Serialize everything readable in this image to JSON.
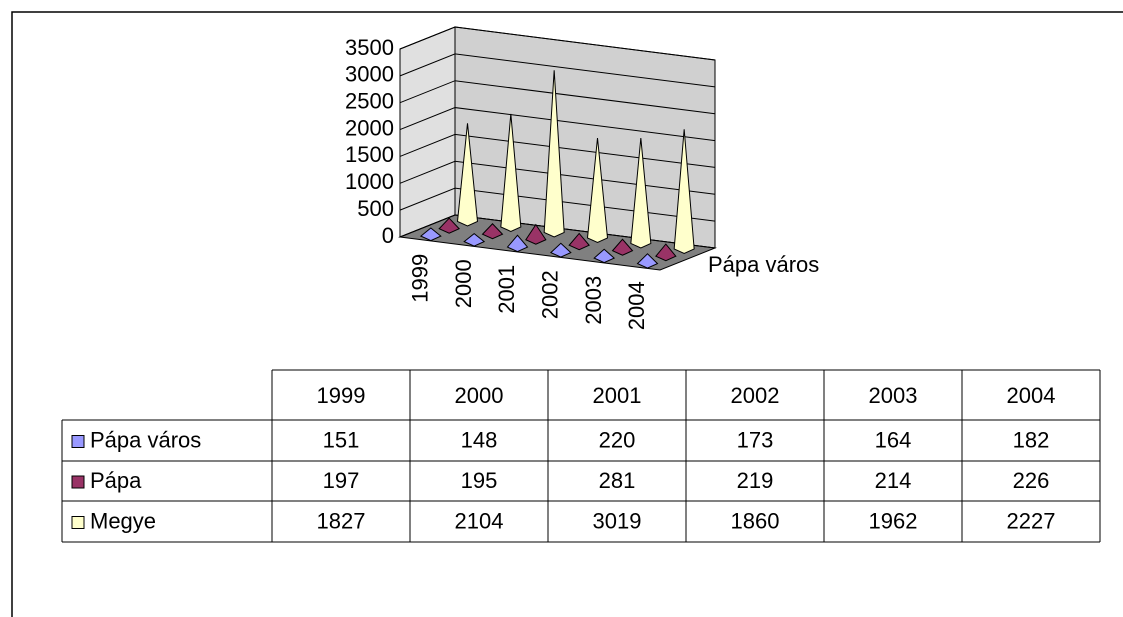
{
  "chart_data": {
    "type": "cone3d",
    "categories": [
      "1999",
      "2000",
      "2001",
      "2002",
      "2003",
      "2004"
    ],
    "series": [
      {
        "name": "Pápa város",
        "color": "#9999ff",
        "values": [
          151,
          148,
          220,
          173,
          164,
          182
        ]
      },
      {
        "name": "Pápa",
        "color": "#993366",
        "values": [
          197,
          195,
          281,
          219,
          214,
          226
        ]
      },
      {
        "name": "Megye",
        "color": "#ffffcc",
        "values": [
          1827,
          2104,
          3019,
          1860,
          1962,
          2227
        ]
      }
    ],
    "depth_label": "Pápa város",
    "ylim": [
      0,
      3500
    ],
    "yticks": [
      0,
      500,
      1000,
      1500,
      2000,
      2500,
      3000,
      3500
    ],
    "grid": true,
    "data_table": true
  }
}
